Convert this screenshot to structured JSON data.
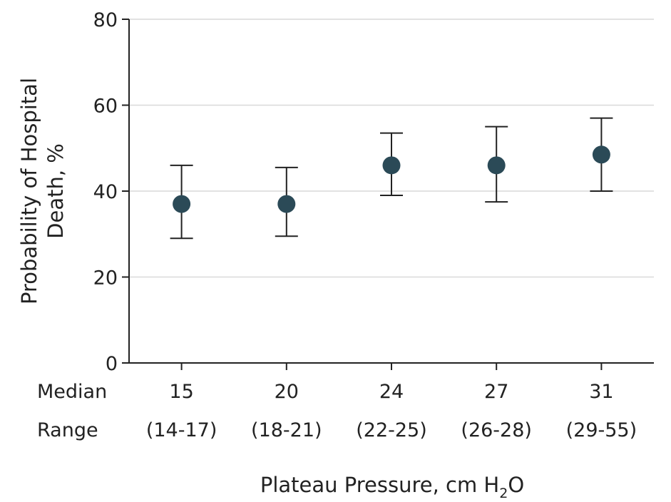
{
  "chart_data": {
    "type": "scatter",
    "ylabel_line1": "Probability of Hospital",
    "ylabel_line2": "Death, %",
    "xlabel_prefix": "Plateau Pressure, cm H",
    "xlabel_subscript": "2",
    "xlabel_suffix": "O",
    "ylim": [
      0,
      80
    ],
    "yticks": [
      "0",
      "20",
      "40",
      "60",
      "80"
    ],
    "grid": true,
    "row_labels": {
      "median": "Median",
      "range": "Range"
    },
    "categories": [
      {
        "median": "15",
        "range": "(14-17)"
      },
      {
        "median": "20",
        "range": "(18-21)"
      },
      {
        "median": "24",
        "range": "(22-25)"
      },
      {
        "median": "27",
        "range": "(26-28)"
      },
      {
        "median": "31",
        "range": "(29-55)"
      }
    ],
    "series": [
      {
        "values": [
          37,
          37,
          46,
          46,
          48.5
        ],
        "ci_low": [
          29,
          29.5,
          39,
          37.5,
          40
        ],
        "ci_high": [
          46,
          45.5,
          53.5,
          55,
          57
        ]
      }
    ],
    "colors": {
      "marker": "#2b4a57",
      "errorbar": "#222222",
      "grid": "#d9d9d9",
      "axis": "#222222"
    }
  }
}
